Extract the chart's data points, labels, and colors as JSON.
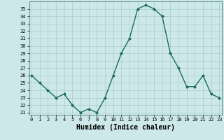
{
  "xlabel": "Humidex (Indice chaleur)",
  "x": [
    0,
    1,
    2,
    3,
    4,
    5,
    6,
    7,
    8,
    9,
    10,
    11,
    12,
    13,
    14,
    15,
    16,
    17,
    18,
    19,
    20,
    21,
    22,
    23
  ],
  "y": [
    26,
    25,
    24,
    23,
    23.5,
    22,
    21,
    21.5,
    21,
    23,
    26,
    29,
    31,
    35,
    35.5,
    35,
    34,
    29,
    27,
    24.5,
    24.5,
    26,
    23.5,
    23
  ],
  "line_color": "#1a6b5a",
  "marker": "D",
  "marker_size": 2.0,
  "bg_color": "#cde8e8",
  "grid_color": "#aacccc",
  "yticks": [
    21,
    22,
    23,
    24,
    25,
    26,
    27,
    28,
    29,
    30,
    31,
    32,
    33,
    34,
    35
  ],
  "xticks": [
    0,
    1,
    2,
    3,
    4,
    5,
    6,
    7,
    8,
    9,
    10,
    11,
    12,
    13,
    14,
    15,
    16,
    17,
    18,
    19,
    20,
    21,
    22,
    23
  ],
  "xlabel_fontsize": 7,
  "tick_fontsize": 5,
  "line_width": 1.0,
  "xlim": [
    -0.3,
    23.3
  ],
  "ylim": [
    20.7,
    36.0
  ]
}
